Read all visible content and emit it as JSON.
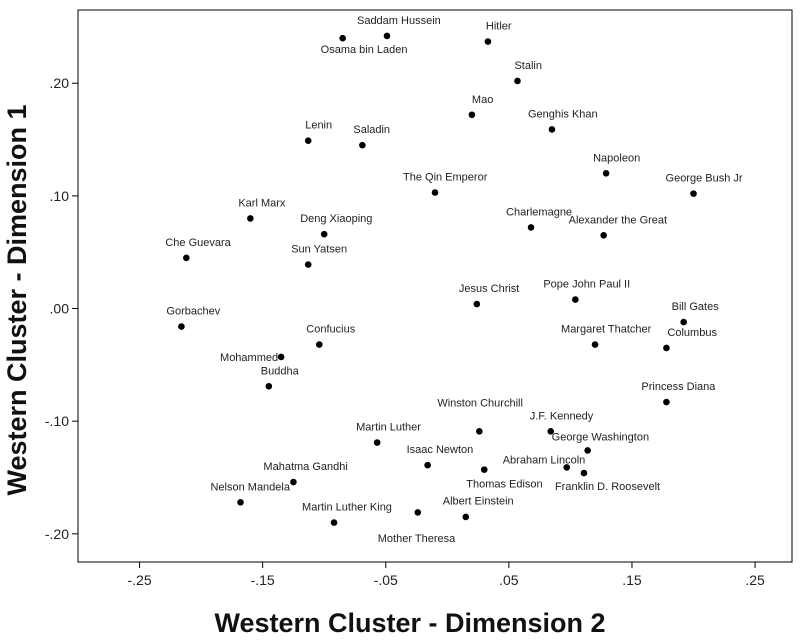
{
  "chart_data": {
    "type": "scatter",
    "xlabel": "Western Cluster - Dimension 2",
    "ylabel": "Western Cluster - Dimension 1",
    "xlim": [
      -0.3,
      0.28
    ],
    "ylim": [
      -0.225,
      0.265
    ],
    "x_ticks": [
      -0.25,
      -0.15,
      -0.05,
      0.05,
      0.15,
      0.25
    ],
    "x_tick_labels": [
      "-.25",
      "-.15",
      "-.05",
      ".05",
      ".15",
      ".25"
    ],
    "y_ticks": [
      0.2,
      0.1,
      0.0,
      -0.1,
      -0.2
    ],
    "y_tick_labels": [
      ".20",
      ".10",
      ".00",
      "-.10",
      "-.20"
    ],
    "grid": false,
    "marker_color": "#000000",
    "points": [
      {
        "label": "Saddam Hussein",
        "x": -0.049,
        "y": 0.242,
        "anchor": "start",
        "dx": -30,
        "dy": -12
      },
      {
        "label": "Osama bin Laden",
        "x": -0.085,
        "y": 0.24,
        "anchor": "start",
        "dx": -22,
        "dy": 15
      },
      {
        "label": "Hitler",
        "x": 0.033,
        "y": 0.237,
        "anchor": "start",
        "dx": -2,
        "dy": -12
      },
      {
        "label": "Stalin",
        "x": 0.057,
        "y": 0.202,
        "anchor": "start",
        "dx": -3,
        "dy": -12
      },
      {
        "label": "Mao",
        "x": 0.02,
        "y": 0.172,
        "anchor": "start",
        "dx": 0,
        "dy": -12
      },
      {
        "label": "Genghis Khan",
        "x": 0.085,
        "y": 0.159,
        "anchor": "start",
        "dx": -24,
        "dy": -12
      },
      {
        "label": "Lenin",
        "x": -0.113,
        "y": 0.149,
        "anchor": "start",
        "dx": -3,
        "dy": -12
      },
      {
        "label": "Saladin",
        "x": -0.069,
        "y": 0.145,
        "anchor": "start",
        "dx": -9,
        "dy": -12
      },
      {
        "label": "Napoleon",
        "x": 0.129,
        "y": 0.12,
        "anchor": "start",
        "dx": -13,
        "dy": -12
      },
      {
        "label": "The Qin Emperor",
        "x": -0.01,
        "y": 0.103,
        "anchor": "start",
        "dx": -32,
        "dy": -12
      },
      {
        "label": "George Bush Jr",
        "x": 0.2,
        "y": 0.102,
        "anchor": "start",
        "dx": -28,
        "dy": -12
      },
      {
        "label": "Karl Marx",
        "x": -0.16,
        "y": 0.08,
        "anchor": "start",
        "dx": -12,
        "dy": -12
      },
      {
        "label": "Charlemagne",
        "x": 0.068,
        "y": 0.072,
        "anchor": "start",
        "dx": -25,
        "dy": -12
      },
      {
        "label": "Alexander the Great",
        "x": 0.127,
        "y": 0.065,
        "anchor": "start",
        "dx": -35,
        "dy": -12
      },
      {
        "label": "Deng Xiaoping",
        "x": -0.1,
        "y": 0.066,
        "anchor": "start",
        "dx": -24,
        "dy": -12
      },
      {
        "label": "Che Guevara",
        "x": -0.212,
        "y": 0.045,
        "anchor": "start",
        "dx": -21,
        "dy": -12
      },
      {
        "label": "Sun Yatsen",
        "x": -0.113,
        "y": 0.039,
        "anchor": "start",
        "dx": -17,
        "dy": -12
      },
      {
        "label": "Jesus Christ",
        "x": 0.024,
        "y": 0.004,
        "anchor": "start",
        "dx": -18,
        "dy": -12
      },
      {
        "label": "Pope John Paul II",
        "x": 0.104,
        "y": 0.008,
        "anchor": "start",
        "dx": -32,
        "dy": -12
      },
      {
        "label": "Bill Gates",
        "x": 0.192,
        "y": -0.012,
        "anchor": "start",
        "dx": -12,
        "dy": -12
      },
      {
        "label": "Gorbachev",
        "x": -0.216,
        "y": -0.016,
        "anchor": "start",
        "dx": -15,
        "dy": -12
      },
      {
        "label": "Confucius",
        "x": -0.104,
        "y": -0.032,
        "anchor": "start",
        "dx": -13,
        "dy": -12
      },
      {
        "label": "Margaret Thatcher",
        "x": 0.12,
        "y": -0.032,
        "anchor": "start",
        "dx": -34,
        "dy": -12
      },
      {
        "label": "Columbus",
        "x": 0.178,
        "y": -0.035,
        "anchor": "start",
        "dx": 1,
        "dy": -12
      },
      {
        "label": "Mohammed",
        "x": -0.135,
        "y": -0.043,
        "anchor": "end",
        "dx": -3,
        "dy": 4
      },
      {
        "label": "Buddha",
        "x": -0.145,
        "y": -0.069,
        "anchor": "start",
        "dx": -8,
        "dy": -12
      },
      {
        "label": "Princess Diana",
        "x": 0.178,
        "y": -0.083,
        "anchor": "start",
        "dx": -25,
        "dy": -12
      },
      {
        "label": "Winston Churchill",
        "x": 0.026,
        "y": -0.109,
        "anchor": "start",
        "dx": -42,
        "dy": -25
      },
      {
        "label": "J.F. Kennedy",
        "x": 0.084,
        "y": -0.109,
        "anchor": "start",
        "dx": -21,
        "dy": -12
      },
      {
        "label": "Martin Luther",
        "x": -0.057,
        "y": -0.119,
        "anchor": "start",
        "dx": -21,
        "dy": -12
      },
      {
        "label": "George Washington",
        "x": 0.114,
        "y": -0.126,
        "anchor": "start",
        "dx": -36,
        "dy": -10
      },
      {
        "label": "Isaac Newton",
        "x": -0.016,
        "y": -0.139,
        "anchor": "start",
        "dx": -21,
        "dy": -12
      },
      {
        "label": "Thomas Edison",
        "x": 0.03,
        "y": -0.143,
        "anchor": "start",
        "dx": -18,
        "dy": 18
      },
      {
        "label": "Abraham Lincoln",
        "x": 0.097,
        "y": -0.141,
        "anchor": "start",
        "dx": -64,
        "dy": -4
      },
      {
        "label": "Franklin D. Roosevelt",
        "x": 0.111,
        "y": -0.146,
        "anchor": "start",
        "dx": -29,
        "dy": 17
      },
      {
        "label": "Mahatma Gandhi",
        "x": -0.125,
        "y": -0.154,
        "anchor": "start",
        "dx": -30,
        "dy": -12
      },
      {
        "label": "Nelson Mandela",
        "x": -0.168,
        "y": -0.172,
        "anchor": "start",
        "dx": -30,
        "dy": -12
      },
      {
        "label": "Martin Luther King",
        "x": -0.092,
        "y": -0.19,
        "anchor": "start",
        "dx": -32,
        "dy": -12
      },
      {
        "label": "Albert Einstein",
        "x": -0.024,
        "y": -0.181,
        "anchor": "start",
        "dx": 25,
        "dy": -8
      },
      {
        "label": "Mother Theresa",
        "x": 0.015,
        "y": -0.185,
        "anchor": "start",
        "dx": -88,
        "dy": 25
      }
    ]
  }
}
